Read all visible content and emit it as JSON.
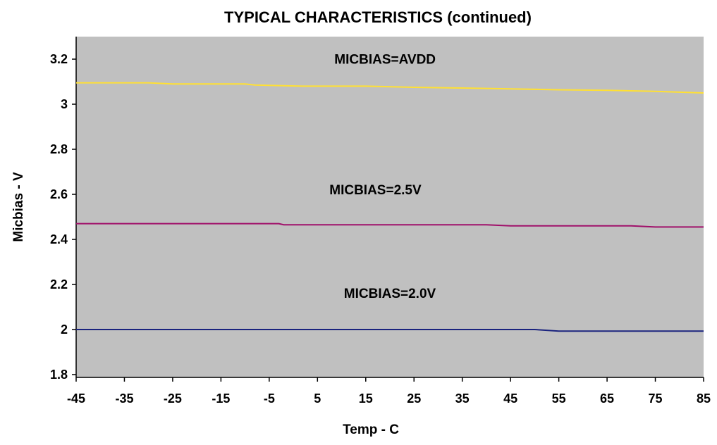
{
  "chart_data": {
    "type": "line",
    "title": "TYPICAL CHARACTERISTICS (continued)",
    "xlabel": "Temp - C",
    "ylabel": "Micbias - V",
    "xlim": [
      -45,
      85
    ],
    "ylim": [
      1.8,
      3.3
    ],
    "xticks": [
      -45,
      -35,
      -25,
      -15,
      -5,
      5,
      15,
      25,
      35,
      45,
      55,
      65,
      75,
      85
    ],
    "yticks": [
      1.8,
      2,
      2.2,
      2.4,
      2.6,
      2.8,
      3,
      3.2
    ],
    "ytick_labels": [
      "1.8",
      "2",
      "2.2",
      "2.4",
      "2.6",
      "2.8",
      "3",
      "3.2"
    ],
    "grid": false,
    "plot_background": "#c0c0c0",
    "series": [
      {
        "name": "MICBIAS=AVDD",
        "color": "#ffe033",
        "x": [
          -45,
          -30,
          -25,
          -10,
          -8,
          2,
          15,
          25,
          35,
          45,
          55,
          65,
          75,
          85
        ],
        "y": [
          3.095,
          3.095,
          3.09,
          3.09,
          3.085,
          3.08,
          3.08,
          3.075,
          3.072,
          3.068,
          3.064,
          3.062,
          3.057,
          3.05
        ]
      },
      {
        "name": "MICBIAS=2.5V",
        "color": "#a0106a",
        "x": [
          -45,
          -3,
          -2,
          40,
          45,
          70,
          75,
          85
        ],
        "y": [
          2.47,
          2.47,
          2.465,
          2.465,
          2.46,
          2.46,
          2.455,
          2.455
        ]
      },
      {
        "name": "MICBIAS=2.0V",
        "color": "#1a237e",
        "x": [
          -45,
          50,
          55,
          85
        ],
        "y": [
          2.0,
          2.0,
          1.993,
          1.993
        ]
      }
    ],
    "annotations": [
      {
        "text": "MICBIAS=AVDD",
        "x": 19,
        "y": 3.18
      },
      {
        "text": "MICBIAS=2.5V",
        "x": 17,
        "y": 2.6
      },
      {
        "text": "MICBIAS=2.0V",
        "x": 20,
        "y": 2.14
      }
    ]
  }
}
